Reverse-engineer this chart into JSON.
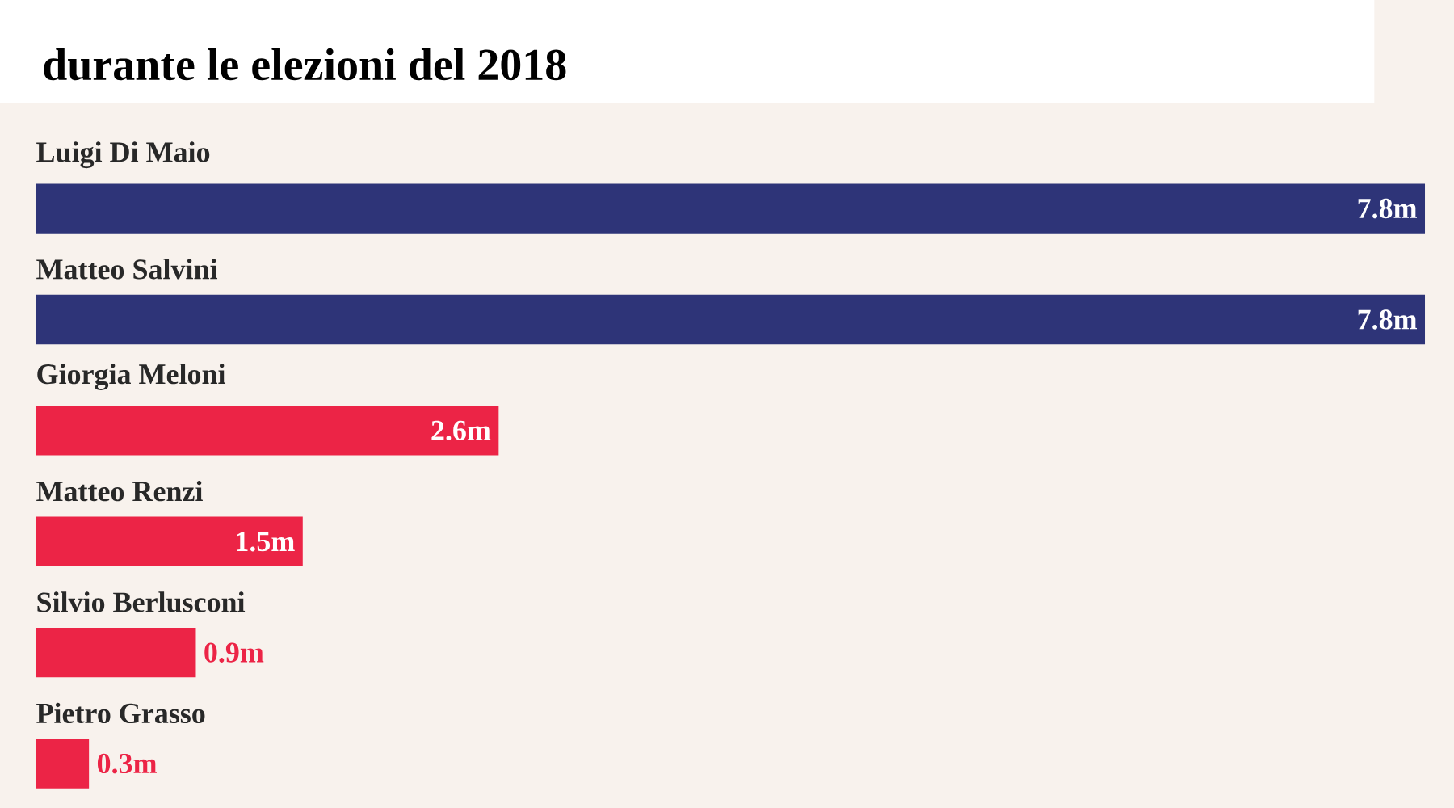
{
  "chart_data": {
    "type": "bar",
    "orientation": "horizontal",
    "title": "durante le elezioni del 2018",
    "categories": [
      "Luigi Di Maio",
      "Matteo Salvini",
      "Giorgia Meloni",
      "Matteo Renzi",
      "Silvio Berlusconi",
      "Pietro Grasso"
    ],
    "values": [
      7.8,
      7.8,
      2.6,
      1.5,
      0.9,
      0.3
    ],
    "value_labels": [
      "7.8m",
      "7.8m",
      "2.6m",
      "1.5m",
      "0.9m",
      "0.3m"
    ],
    "colors": [
      "#2e3478",
      "#2e3478",
      "#ec2446",
      "#ec2446",
      "#ec2446",
      "#ec2446"
    ]
  }
}
